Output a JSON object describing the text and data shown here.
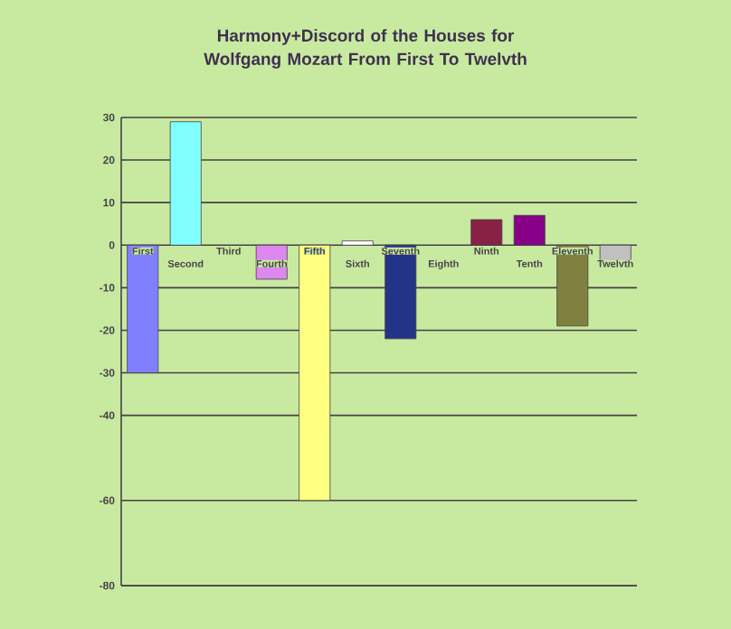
{
  "chart_data": {
    "type": "bar",
    "title": "Harmony+Discord of the Houses for Wolfgang Mozart From First To Twelvth",
    "categories": [
      "First",
      "Second",
      "Third",
      "Fourth",
      "Fifth",
      "Sixth",
      "Seventh",
      "Eighth",
      "Ninth",
      "Tenth",
      "Eleventh",
      "Twelvth"
    ],
    "values": [
      -30,
      29,
      0,
      -8,
      -60,
      1,
      -22,
      0,
      6,
      7,
      -19,
      -5
    ],
    "colors": [
      "#8080ff",
      "#80ffff",
      "#ff8080",
      "#dd88ee",
      "#ffff80",
      "#ffffff",
      "#223388",
      "#408080",
      "#882244",
      "#880088",
      "#808040",
      "#c0c0c0"
    ],
    "ylim": [
      -80,
      30
    ],
    "yticks": [
      30,
      20,
      10,
      0,
      -10,
      -20,
      -30,
      -40,
      -60,
      -80
    ],
    "grid": true
  }
}
